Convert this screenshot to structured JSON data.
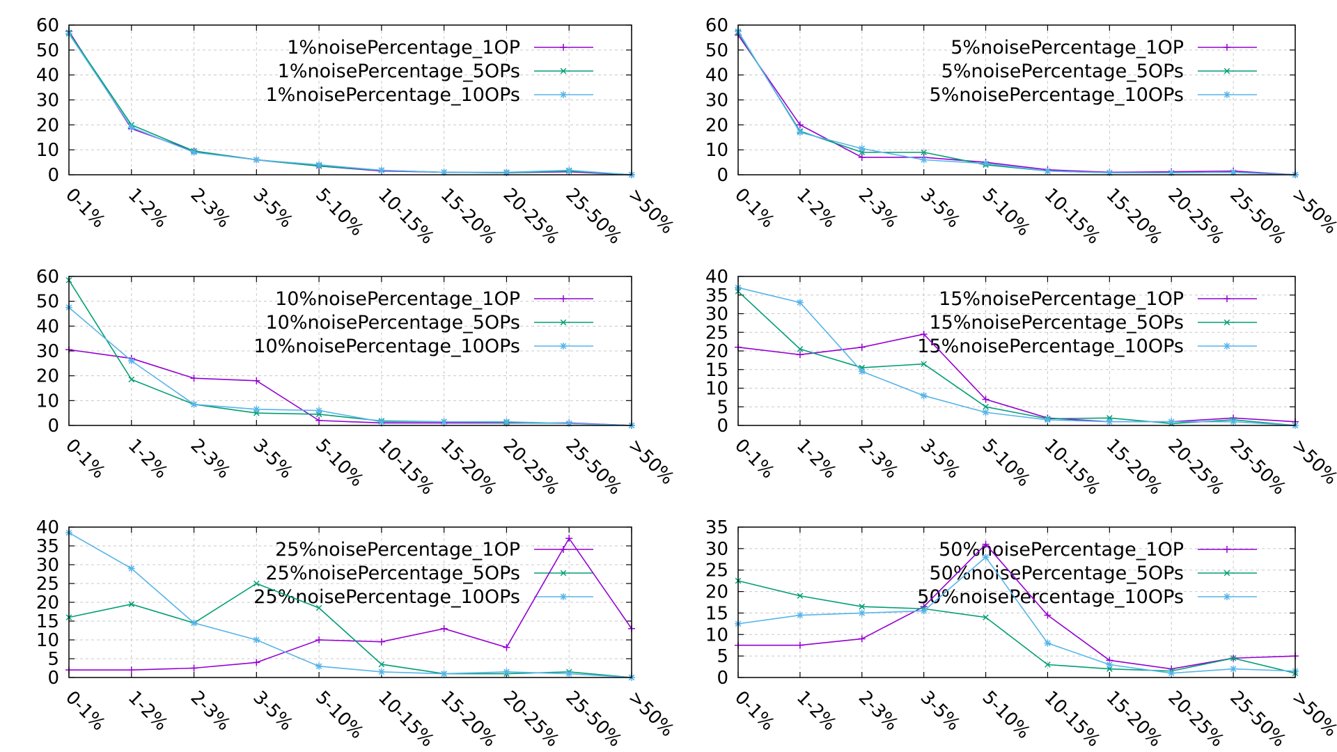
{
  "chart_data": [
    {
      "type": "line",
      "categories": [
        "0-1%",
        "1-2%",
        "2-3%",
        "3-5%",
        "5-10%",
        "10-15%",
        "15-20%",
        "20-25%",
        "25-50%",
        ">50%"
      ],
      "ylim": [
        0,
        60
      ],
      "yticks": [
        0,
        10,
        20,
        30,
        40,
        50,
        60
      ],
      "grid": true,
      "legend": "top-right",
      "series": [
        {
          "name": "1%noisePercentage_1OP",
          "marker": "+",
          "color": "#9400d3",
          "values": [
            57.5,
            18.5,
            9.5,
            6.0,
            3.5,
            1.5,
            1.0,
            0.8,
            1.2,
            0.0
          ]
        },
        {
          "name": "1%noisePercentage_5OPs",
          "marker": "x",
          "color": "#009e73",
          "values": [
            57.0,
            20.0,
            9.5,
            6.0,
            3.5,
            1.8,
            1.0,
            0.8,
            1.5,
            0.0
          ]
        },
        {
          "name": "1%noisePercentage_10OPs",
          "marker": "*",
          "color": "#56b4e9",
          "values": [
            56.5,
            19.0,
            9.0,
            6.0,
            4.0,
            1.8,
            1.0,
            1.0,
            1.8,
            0.0
          ]
        }
      ]
    },
    {
      "type": "line",
      "categories": [
        "0-1%",
        "1-2%",
        "2-3%",
        "3-5%",
        "5-10%",
        "10-15%",
        "15-20%",
        "20-25%",
        "25-50%",
        ">50%"
      ],
      "ylim": [
        0,
        60
      ],
      "yticks": [
        0,
        10,
        20,
        30,
        40,
        50,
        60
      ],
      "grid": true,
      "legend": "top-right",
      "series": [
        {
          "name": "5%noisePercentage_1OP",
          "marker": "+",
          "color": "#9400d3",
          "values": [
            56.0,
            20.0,
            7.0,
            7.0,
            5.0,
            2.0,
            1.0,
            1.2,
            1.5,
            0.0
          ]
        },
        {
          "name": "5%noisePercentage_5OPs",
          "marker": "x",
          "color": "#009e73",
          "values": [
            57.0,
            17.5,
            9.0,
            9.0,
            4.0,
            1.5,
            0.8,
            0.8,
            1.0,
            0.0
          ]
        },
        {
          "name": "5%noisePercentage_10OPs",
          "marker": "*",
          "color": "#56b4e9",
          "values": [
            57.5,
            17.0,
            10.5,
            6.0,
            4.5,
            1.5,
            0.8,
            0.8,
            1.0,
            0.0
          ]
        }
      ]
    },
    {
      "type": "line",
      "categories": [
        "0-1%",
        "1-2%",
        "2-3%",
        "3-5%",
        "5-10%",
        "10-15%",
        "15-20%",
        "20-25%",
        "25-50%",
        ">50%"
      ],
      "ylim": [
        0,
        60
      ],
      "yticks": [
        0,
        10,
        20,
        30,
        40,
        50,
        60
      ],
      "grid": true,
      "legend": "top-right",
      "series": [
        {
          "name": "10%noisePercentage_1OP",
          "marker": "+",
          "color": "#9400d3",
          "values": [
            30.5,
            27.0,
            19.0,
            18.0,
            2.0,
            1.0,
            1.0,
            1.0,
            1.0,
            0.0
          ]
        },
        {
          "name": "10%noisePercentage_5OPs",
          "marker": "x",
          "color": "#009e73",
          "values": [
            58.5,
            18.5,
            8.5,
            5.0,
            4.5,
            1.8,
            1.5,
            1.2,
            0.8,
            0.0
          ]
        },
        {
          "name": "10%noisePercentage_10OPs",
          "marker": "*",
          "color": "#56b4e9",
          "values": [
            47.5,
            26.0,
            8.5,
            6.5,
            6.0,
            1.5,
            1.5,
            1.5,
            0.8,
            0.0
          ]
        }
      ]
    },
    {
      "type": "line",
      "categories": [
        "0-1%",
        "1-2%",
        "2-3%",
        "3-5%",
        "5-10%",
        "10-15%",
        "15-20%",
        "20-25%",
        "25-50%",
        ">50%"
      ],
      "ylim": [
        0,
        40
      ],
      "yticks": [
        0,
        5,
        10,
        15,
        20,
        25,
        30,
        35,
        40
      ],
      "grid": true,
      "legend": "top-right",
      "series": [
        {
          "name": "15%noisePercentage_1OP",
          "marker": "+",
          "color": "#9400d3",
          "values": [
            21.0,
            19.0,
            21.0,
            24.5,
            7.0,
            2.0,
            1.0,
            1.0,
            2.0,
            1.0
          ]
        },
        {
          "name": "15%noisePercentage_5OPs",
          "marker": "x",
          "color": "#009e73",
          "values": [
            36.0,
            20.5,
            15.5,
            16.5,
            5.0,
            1.8,
            2.0,
            0.5,
            1.5,
            0.0
          ]
        },
        {
          "name": "15%noisePercentage_10OPs",
          "marker": "*",
          "color": "#56b4e9",
          "values": [
            37.0,
            33.0,
            14.5,
            8.0,
            3.5,
            1.5,
            1.0,
            1.0,
            1.0,
            0.0
          ]
        }
      ]
    },
    {
      "type": "line",
      "categories": [
        "0-1%",
        "1-2%",
        "2-3%",
        "3-5%",
        "5-10%",
        "10-15%",
        "15-20%",
        "20-25%",
        "25-50%",
        ">50%"
      ],
      "ylim": [
        0,
        40
      ],
      "yticks": [
        0,
        5,
        10,
        15,
        20,
        25,
        30,
        35,
        40
      ],
      "grid": true,
      "legend": "top-right",
      "series": [
        {
          "name": "25%noisePercentage_1OP",
          "marker": "+",
          "color": "#9400d3",
          "values": [
            2.0,
            2.0,
            2.5,
            4.0,
            10.0,
            9.5,
            13.0,
            8.0,
            37.0,
            13.0
          ]
        },
        {
          "name": "25%noisePercentage_5OPs",
          "marker": "x",
          "color": "#009e73",
          "values": [
            16.0,
            19.5,
            14.5,
            25.0,
            18.5,
            3.5,
            1.0,
            1.0,
            1.5,
            0.0
          ]
        },
        {
          "name": "25%noisePercentage_10OPs",
          "marker": "*",
          "color": "#56b4e9",
          "values": [
            38.5,
            29.0,
            14.5,
            10.0,
            3.0,
            1.5,
            1.0,
            1.5,
            1.0,
            0.0
          ]
        }
      ]
    },
    {
      "type": "line",
      "categories": [
        "0-1%",
        "1-2%",
        "2-3%",
        "3-5%",
        "5-10%",
        "10-15%",
        "15-20%",
        "20-25%",
        "25-50%",
        ">50%"
      ],
      "ylim": [
        0,
        35
      ],
      "yticks": [
        0,
        5,
        10,
        15,
        20,
        25,
        30,
        35
      ],
      "grid": true,
      "legend": "top-right",
      "series": [
        {
          "name": "50%noisePercentage_1OP",
          "marker": "+",
          "color": "#9400d3",
          "values": [
            7.5,
            7.5,
            9.0,
            16.5,
            31.0,
            14.5,
            4.0,
            2.0,
            4.5,
            5.0
          ]
        },
        {
          "name": "50%noisePercentage_5OPs",
          "marker": "x",
          "color": "#009e73",
          "values": [
            22.5,
            19.0,
            16.5,
            16.0,
            14.0,
            3.0,
            2.0,
            1.5,
            4.5,
            1.0
          ]
        },
        {
          "name": "50%noisePercentage_10OPs",
          "marker": "*",
          "color": "#56b4e9",
          "values": [
            12.5,
            14.5,
            15.0,
            15.5,
            28.0,
            8.0,
            3.0,
            1.0,
            2.0,
            1.5
          ]
        }
      ]
    }
  ]
}
